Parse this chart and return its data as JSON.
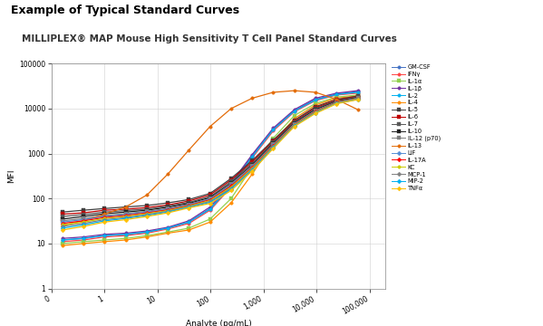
{
  "title1": "Example of Typical Standard Curves",
  "title2": "MILLIPLEX® MAP Mouse High Sensitivity T Cell Panel Standard Curves",
  "xlabel": "Analyte (pg/mL)",
  "ylabel": "MFI",
  "series": [
    {
      "label": "GM-CSF",
      "color": "#4472C4",
      "marker": "o",
      "x": [
        0.16,
        0.4,
        1.0,
        2.5,
        6.3,
        15.6,
        39,
        98,
        244,
        610,
        1526,
        3815,
        9536,
        23841,
        59602
      ],
      "y": [
        12,
        13,
        15,
        16,
        18,
        22,
        30,
        60,
        200,
        900,
        3500,
        9000,
        16000,
        21000,
        24000
      ]
    },
    {
      "label": "IFNγ",
      "color": "#FF4444",
      "marker": "o",
      "x": [
        0.16,
        0.4,
        1.0,
        2.5,
        6.3,
        15.6,
        39,
        98,
        244,
        610,
        1526,
        3815,
        9536,
        23841,
        59602
      ],
      "y": [
        11,
        12,
        14,
        15,
        17,
        21,
        28,
        55,
        180,
        800,
        3200,
        8500,
        15000,
        20000,
        22000
      ]
    },
    {
      "label": "IL-1α",
      "color": "#92D050",
      "marker": "s",
      "x": [
        0.16,
        0.4,
        1.0,
        2.5,
        6.3,
        15.6,
        39,
        98,
        244,
        610,
        1526,
        3815,
        9536,
        23841,
        59602
      ],
      "y": [
        10,
        11,
        12,
        13,
        15,
        18,
        22,
        35,
        100,
        500,
        2200,
        7000,
        13000,
        18000,
        20000
      ]
    },
    {
      "label": "IL-1β",
      "color": "#7030A0",
      "marker": "o",
      "x": [
        0.16,
        0.4,
        1.0,
        2.5,
        6.3,
        15.6,
        39,
        98,
        244,
        610,
        1526,
        3815,
        9536,
        23841,
        59602
      ],
      "y": [
        13,
        14,
        16,
        17,
        19,
        23,
        32,
        65,
        220,
        950,
        3700,
        9500,
        17000,
        22000,
        25000
      ]
    },
    {
      "label": "IL-2",
      "color": "#00B0F0",
      "marker": "o",
      "x": [
        0.16,
        0.4,
        1.0,
        2.5,
        6.3,
        15.6,
        39,
        98,
        244,
        610,
        1526,
        3815,
        9536,
        23841,
        59602
      ],
      "y": [
        12,
        13,
        15,
        16,
        18,
        22,
        30,
        58,
        190,
        850,
        3400,
        8800,
        15500,
        20500,
        23000
      ]
    },
    {
      "label": "IL-4",
      "color": "#FF8C00",
      "marker": "o",
      "x": [
        0.16,
        0.4,
        1.0,
        2.5,
        6.3,
        15.6,
        39,
        98,
        244,
        610,
        1526,
        3815,
        9536,
        23841,
        59602
      ],
      "y": [
        9,
        10,
        11,
        12,
        14,
        17,
        20,
        30,
        80,
        350,
        1800,
        6000,
        12000,
        17000,
        19000
      ]
    },
    {
      "label": "IL-5",
      "color": "#404040",
      "marker": "s",
      "x": [
        0.16,
        0.4,
        1.0,
        2.5,
        6.3,
        15.6,
        39,
        98,
        244,
        610,
        1526,
        3815,
        9536,
        23841,
        59602
      ],
      "y": [
        50,
        55,
        60,
        65,
        70,
        80,
        95,
        130,
        280,
        700,
        2000,
        5500,
        11000,
        16000,
        19000
      ]
    },
    {
      "label": "IL-6",
      "color": "#C00000",
      "marker": "s",
      "x": [
        0.16,
        0.4,
        1.0,
        2.5,
        6.3,
        15.6,
        39,
        98,
        244,
        610,
        1526,
        3815,
        9536,
        23841,
        59602
      ],
      "y": [
        45,
        48,
        55,
        58,
        63,
        72,
        88,
        120,
        260,
        650,
        1900,
        5200,
        10500,
        15500,
        18500
      ]
    },
    {
      "label": "IL-7",
      "color": "#595959",
      "marker": "s",
      "x": [
        0.16,
        0.4,
        1.0,
        2.5,
        6.3,
        15.6,
        39,
        98,
        244,
        610,
        1526,
        3815,
        9536,
        23841,
        59602
      ],
      "y": [
        40,
        44,
        50,
        54,
        58,
        68,
        82,
        110,
        240,
        600,
        1800,
        5000,
        10000,
        15000,
        18000
      ]
    },
    {
      "label": "IL-10",
      "color": "#1F1F1F",
      "marker": "s",
      "x": [
        0.16,
        0.4,
        1.0,
        2.5,
        6.3,
        15.6,
        39,
        98,
        244,
        610,
        1526,
        3815,
        9536,
        23841,
        59602
      ],
      "y": [
        35,
        40,
        46,
        50,
        55,
        64,
        78,
        105,
        220,
        560,
        1700,
        4800,
        9500,
        14500,
        17500
      ]
    },
    {
      "label": "IL-12 (p70)",
      "color": "#7F7F7F",
      "marker": "s",
      "x": [
        0.16,
        0.4,
        1.0,
        2.5,
        6.3,
        15.6,
        39,
        98,
        244,
        610,
        1526,
        3815,
        9536,
        23841,
        59602
      ],
      "y": [
        32,
        36,
        42,
        46,
        52,
        60,
        74,
        100,
        210,
        530,
        1600,
        4600,
        9000,
        14000,
        17000
      ]
    },
    {
      "label": "IL-13",
      "color": "#E36C09",
      "marker": "o",
      "x": [
        0.16,
        0.4,
        1.0,
        2.5,
        6.3,
        15.6,
        39,
        98,
        244,
        610,
        1526,
        3815,
        9536,
        23841,
        59602
      ],
      "y": [
        25,
        32,
        45,
        65,
        120,
        350,
        1200,
        4000,
        10000,
        17000,
        23000,
        25000,
        23000,
        16000,
        9500
      ]
    },
    {
      "label": "LIF",
      "color": "#558ED5",
      "marker": "D",
      "x": [
        0.16,
        0.4,
        1.0,
        2.5,
        6.3,
        15.6,
        39,
        98,
        244,
        610,
        1526,
        3815,
        9536,
        23841,
        59602
      ],
      "y": [
        30,
        34,
        40,
        44,
        50,
        58,
        72,
        98,
        200,
        510,
        1550,
        4500,
        8800,
        13800,
        16800
      ]
    },
    {
      "label": "IL-17A",
      "color": "#FF0000",
      "marker": "D",
      "x": [
        0.16,
        0.4,
        1.0,
        2.5,
        6.3,
        15.6,
        39,
        98,
        244,
        610,
        1526,
        3815,
        9536,
        23841,
        59602
      ],
      "y": [
        28,
        32,
        38,
        42,
        48,
        56,
        70,
        94,
        190,
        490,
        1500,
        4400,
        8600,
        13600,
        16600
      ]
    },
    {
      "label": "KC",
      "color": "#CCCC00",
      "marker": "o",
      "x": [
        0.16,
        0.4,
        1.0,
        2.5,
        6.3,
        15.6,
        39,
        98,
        244,
        610,
        1526,
        3815,
        9536,
        23841,
        59602
      ],
      "y": [
        26,
        30,
        36,
        40,
        46,
        54,
        68,
        90,
        180,
        470,
        1450,
        4300,
        8400,
        13400,
        16400
      ]
    },
    {
      "label": "MCP-1",
      "color": "#808080",
      "marker": "D",
      "x": [
        0.16,
        0.4,
        1.0,
        2.5,
        6.3,
        15.6,
        39,
        98,
        244,
        610,
        1526,
        3815,
        9536,
        23841,
        59602
      ],
      "y": [
        24,
        28,
        34,
        38,
        44,
        52,
        66,
        86,
        170,
        450,
        1400,
        4200,
        8200,
        13200,
        16200
      ]
    },
    {
      "label": "MIP-2",
      "color": "#00B0F0",
      "marker": "D",
      "x": [
        0.16,
        0.4,
        1.0,
        2.5,
        6.3,
        15.6,
        39,
        98,
        244,
        610,
        1526,
        3815,
        9536,
        23841,
        59602
      ],
      "y": [
        22,
        26,
        32,
        36,
        42,
        50,
        64,
        82,
        160,
        430,
        1350,
        4100,
        8000,
        13000,
        16000
      ]
    },
    {
      "label": "TNFα",
      "color": "#FFC000",
      "marker": "D",
      "x": [
        0.16,
        0.4,
        1.0,
        2.5,
        6.3,
        15.6,
        39,
        98,
        244,
        610,
        1526,
        3815,
        9536,
        23841,
        59602
      ],
      "y": [
        20,
        24,
        30,
        34,
        40,
        48,
        62,
        78,
        150,
        410,
        1300,
        4000,
        7800,
        12800,
        15800
      ]
    }
  ]
}
